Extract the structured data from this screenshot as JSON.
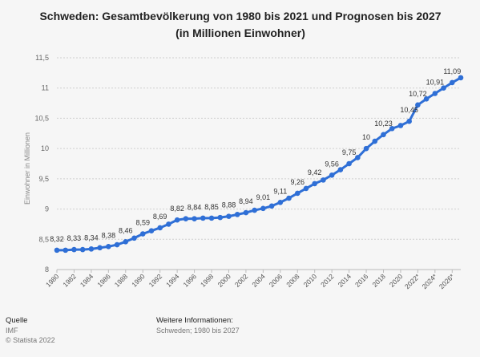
{
  "title": "Schweden: Gesamtbevölkerung von 1980 bis 2021 und Prognosen bis 2027 (in Millionen Einwohner)",
  "chart_data": {
    "type": "line",
    "title": "Schweden: Gesamtbevölkerung von 1980 bis 2021 und Prognosen bis 2027 (in Millionen Einwohner)",
    "xlabel": "",
    "ylabel": "Einwohner in Millionen",
    "ylim": [
      8,
      11.5
    ],
    "yticks": [
      "8",
      "8,5",
      "9",
      "9,5",
      "10",
      "10,5",
      "11",
      "11,5"
    ],
    "ytick_values": [
      8,
      8.5,
      9,
      9.5,
      10,
      10.5,
      11,
      11.5
    ],
    "xtick_labels": [
      "1980",
      "1982",
      "1984",
      "1986",
      "1988",
      "1990",
      "1992",
      "1994",
      "1996",
      "1998",
      "2000",
      "2002",
      "2004",
      "2006",
      "2008",
      "2010",
      "2012",
      "2014",
      "2016",
      "2018",
      "2020",
      "2022*",
      "2024*",
      "2026*"
    ],
    "grid": true,
    "color": "#2f6fd6",
    "x": [
      1980,
      1981,
      1982,
      1983,
      1984,
      1985,
      1986,
      1987,
      1988,
      1989,
      1990,
      1991,
      1992,
      1993,
      1994,
      1995,
      1996,
      1997,
      1998,
      1999,
      2000,
      2001,
      2002,
      2003,
      2004,
      2005,
      2006,
      2007,
      2008,
      2009,
      2010,
      2011,
      2012,
      2013,
      2014,
      2015,
      2016,
      2017,
      2018,
      2019,
      2020,
      2021,
      2022,
      2023,
      2024,
      2025,
      2026,
      2027
    ],
    "values": [
      8.32,
      8.32,
      8.33,
      8.33,
      8.34,
      8.36,
      8.38,
      8.41,
      8.46,
      8.52,
      8.59,
      8.64,
      8.69,
      8.75,
      8.82,
      8.84,
      8.84,
      8.85,
      8.85,
      8.86,
      8.88,
      8.91,
      8.94,
      8.98,
      9.01,
      9.05,
      9.11,
      9.18,
      9.26,
      9.34,
      9.42,
      9.48,
      9.56,
      9.65,
      9.75,
      9.85,
      10.0,
      10.12,
      10.23,
      10.33,
      10.38,
      10.45,
      10.72,
      10.82,
      10.91,
      11.0,
      11.09,
      11.17
    ],
    "labels": [
      "8,32",
      null,
      "8,33",
      null,
      "8,34",
      null,
      "8,38",
      null,
      "8,46",
      null,
      "8,59",
      null,
      "8,69",
      null,
      "8,82",
      null,
      "8,84",
      null,
      "8,85",
      null,
      "8,88",
      null,
      "8,94",
      null,
      "9,01",
      null,
      "9,11",
      null,
      "9,26",
      null,
      "9,42",
      null,
      "9,56",
      null,
      "9,75",
      null,
      "10",
      null,
      "10,23",
      null,
      null,
      "10,45",
      "10,72",
      null,
      "10,91",
      null,
      "11,09",
      null
    ]
  },
  "footer": {
    "source_heading": "Quelle",
    "source_name": "IMF",
    "copyright": "© Statista 2022",
    "info_heading": "Weitere Informationen:",
    "info_text": "Schweden; 1980 bis 2027"
  }
}
